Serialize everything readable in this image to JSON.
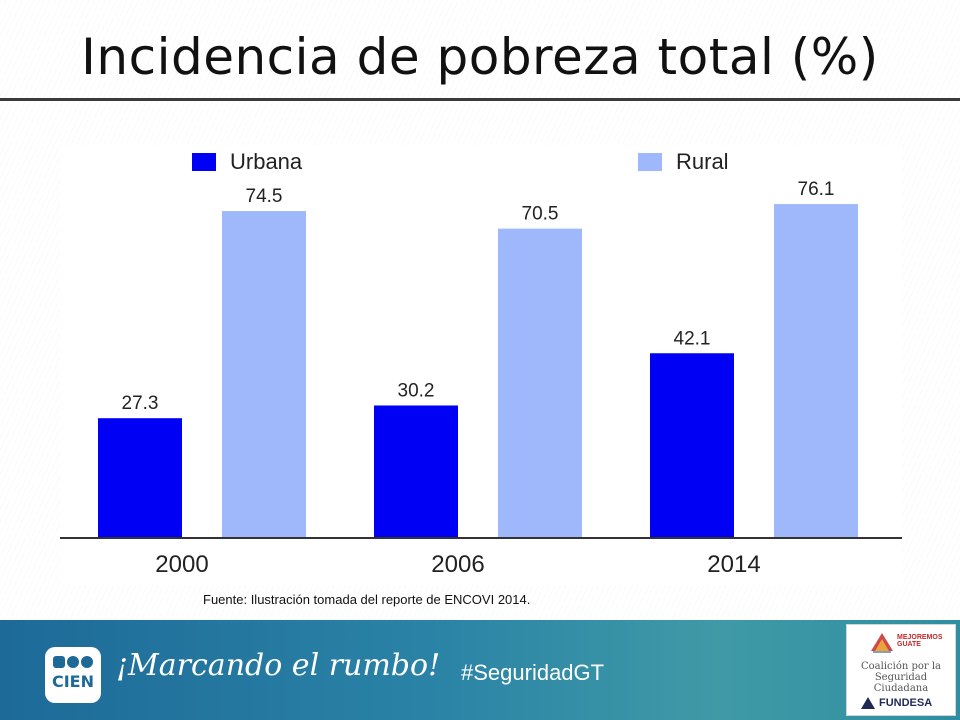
{
  "slide": {
    "title": "Incidencia de pobreza total (%)",
    "source": "Fuente: Ilustración tomada del reporte de ENCOVI 2014."
  },
  "chart_data": {
    "type": "bar",
    "title": "",
    "xlabel": "",
    "ylabel": "",
    "categories": [
      "2000",
      "2006",
      "2014"
    ],
    "series": [
      {
        "name": "Urbana",
        "color": "#0000f5",
        "values": [
          27.3,
          30.2,
          42.1
        ]
      },
      {
        "name": "Rural",
        "color": "#9fb8fb",
        "values": [
          74.5,
          70.5,
          76.1
        ]
      }
    ],
    "ylim": [
      0,
      85
    ],
    "grid": false,
    "legend": "top",
    "data_labels": true
  },
  "footer": {
    "logo_text": "CIEN",
    "motto": "¡Marcando el rumbo!",
    "hashtag": "#SeguridadGT",
    "partner": {
      "top_text": "MEJOREMOS GUATE",
      "coalition_line1": "Coalición por la",
      "coalition_line2": "Seguridad Ciudadana",
      "brand": "FUNDESA"
    }
  },
  "colors": {
    "footer_start": "#1d6a98",
    "footer_end": "#3f9aa6"
  }
}
